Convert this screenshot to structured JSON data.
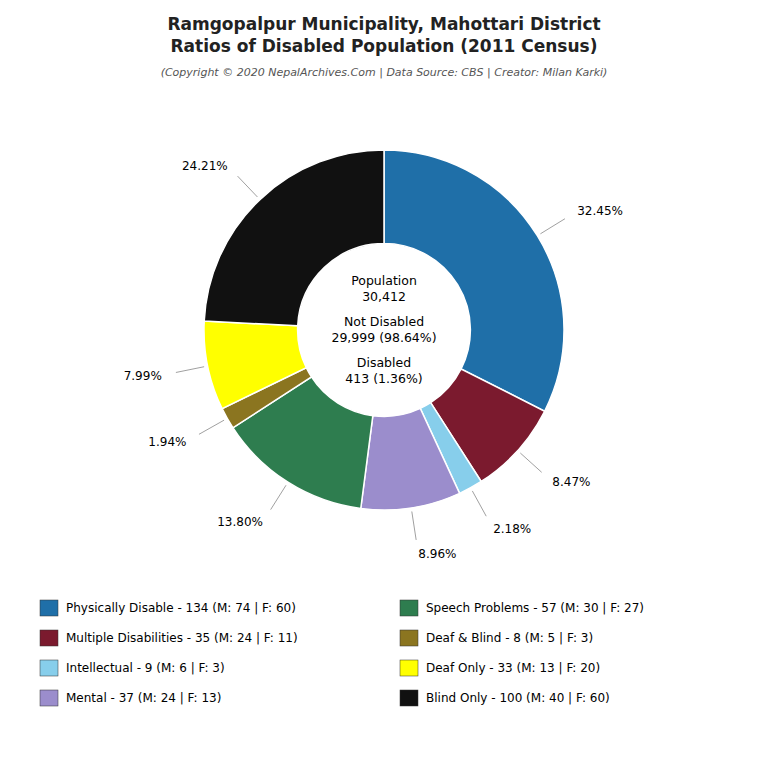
{
  "chart_data": {
    "type": "donut",
    "title": [
      "Ramgopalpur Municipality, Mahottari District",
      "Ratios of Disabled Population (2011 Census)"
    ],
    "subtitle": "(Copyright © 2020 NepalArchives.Com | Data Source: CBS | Creator: Milan Karki)",
    "annotations": [
      "Population",
      "30,412",
      "Not Disabled",
      "29,999 (98.64%)",
      "Disabled",
      "413 (1.36%)"
    ],
    "categories": [
      "Physically Disable - 134 (M: 74 | F: 60)",
      "Multiple Disabilities - 35 (M: 24 | F: 11)",
      "Intellectual - 9 (M: 6 | F: 3)",
      "Mental - 37 (M: 24 | F: 13)",
      "Speech Problems - 57 (M: 30 | F: 27)",
      "Deaf & Blind - 8 (M: 5 | F: 3)",
      "Deaf Only - 33 (M: 13 | F: 20)",
      "Blind Only - 100 (M: 40 | F: 60)"
    ],
    "values": [
      32.45,
      8.47,
      2.18,
      8.96,
      13.8,
      1.94,
      7.99,
      24.21
    ],
    "value_labels": [
      "32.45%",
      "8.47%",
      "2.18%",
      "8.96%",
      "13.80%",
      "1.94%",
      "7.99%",
      "24.21%"
    ],
    "colors": [
      "#1f6fa8",
      "#7b1a2e",
      "#87ceeb",
      "#9b8dcc",
      "#2e7d4f",
      "#8b7520",
      "#ffff00",
      "#111111"
    ],
    "data_labels": true,
    "legend": "bottom"
  }
}
